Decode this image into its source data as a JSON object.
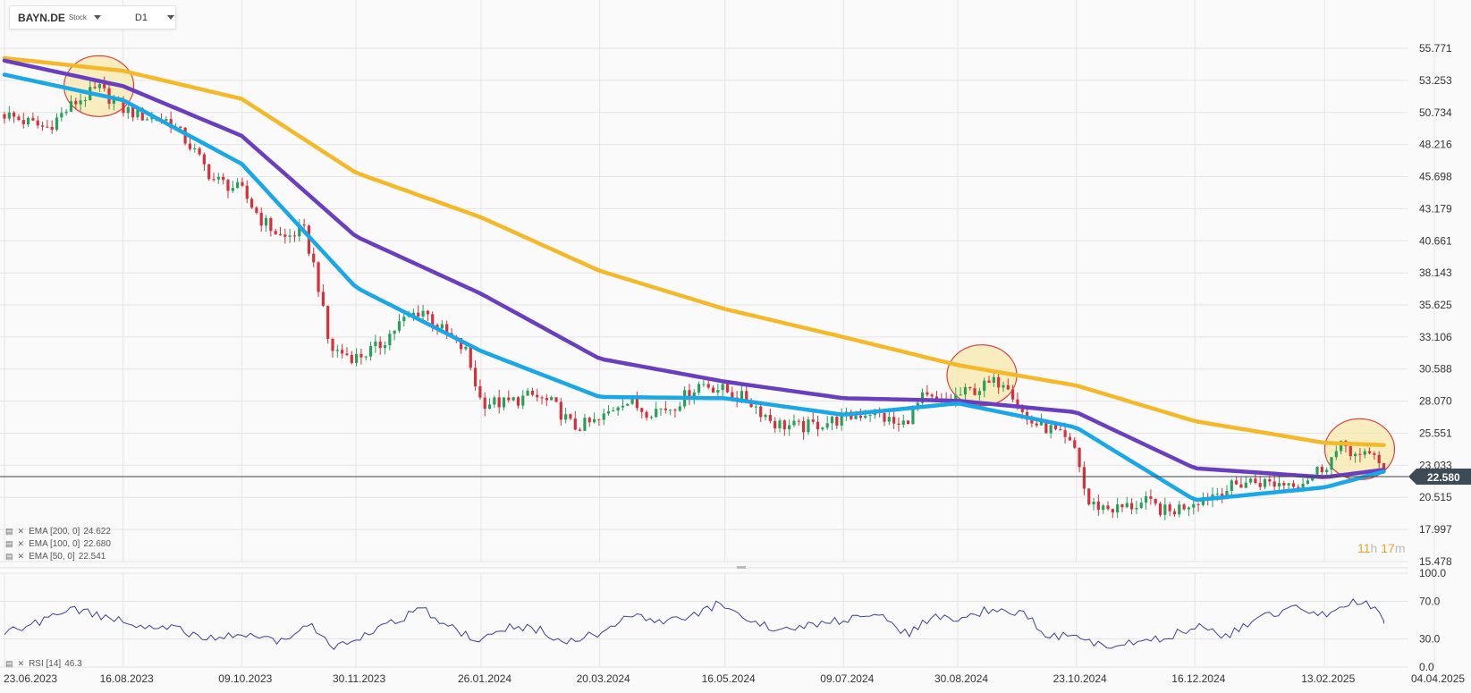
{
  "header": {
    "symbol": "BAYN.DE",
    "instrument_type": "Stock",
    "timeframe": "D1"
  },
  "price_axis": [
    "55.771",
    "53.253",
    "50.734",
    "48.216",
    "45.698",
    "43.179",
    "40.661",
    "38.143",
    "35.625",
    "33.106",
    "30.588",
    "28.070",
    "25.551",
    "23.033",
    "20.515",
    "17.997",
    "15.478"
  ],
  "current_price": "22.580",
  "rsi_axis": [
    "100.0",
    "70.0",
    "30.0",
    "0.0"
  ],
  "x_axis_dates": [
    "23.06.2023",
    "16.08.2023",
    "09.10.2023",
    "30.11.2023",
    "26.01.2024",
    "20.03.2024",
    "16.05.2024",
    "09.07.2024",
    "30.08.2024",
    "23.10.2024",
    "16.12.2024",
    "13.02.2025",
    "04.04.2025"
  ],
  "legend": [
    {
      "label": "EMA [200, 0]",
      "value": "24.622",
      "color": "#f5b829"
    },
    {
      "label": "EMA [100, 0]",
      "value": "22.680",
      "color": "#6a3fbf"
    },
    {
      "label": "EMA [50, 0]",
      "value": "22.541",
      "color": "#1aa7e8"
    }
  ],
  "rsi_legend": {
    "label": "RSI [14]",
    "value": "46.3"
  },
  "countdown": {
    "hours": "11",
    "h_unit": "h",
    "minutes": "17",
    "m_unit": "m"
  },
  "colors": {
    "up": "#27a05a",
    "down": "#d6303a",
    "ema200": "#f5b829",
    "ema100": "#6a3fbf",
    "ema50": "#1aa7e8",
    "rsi": "#3c3f99",
    "highlight_fill": "#f6eab4",
    "highlight_stroke": "#e03a3a"
  },
  "chart_data": {
    "type": "line",
    "price_ylim": [
      15.478,
      57.5
    ],
    "rsi_ylim": [
      0,
      100
    ],
    "grid": true,
    "close_series": [
      [
        "23.06.2023",
        50.6
      ],
      [
        "01.07.2023",
        50.1
      ],
      [
        "12.07.2023",
        49.5
      ],
      [
        "25.07.2023",
        51.5
      ],
      [
        "05.08.2023",
        52.6
      ],
      [
        "16.08.2023",
        51.0
      ],
      [
        "26.08.2023",
        50.4
      ],
      [
        "06.09.2023",
        50.1
      ],
      [
        "16.09.2023",
        48.0
      ],
      [
        "26.09.2023",
        45.5
      ],
      [
        "09.10.2023",
        44.6
      ],
      [
        "18.10.2023",
        42.3
      ],
      [
        "28.10.2023",
        40.8
      ],
      [
        "06.11.2023",
        41.6
      ],
      [
        "12.11.2023",
        38.0
      ],
      [
        "18.11.2023",
        32.2
      ],
      [
        "30.11.2023",
        31.5
      ],
      [
        "10.12.2023",
        32.3
      ],
      [
        "20.12.2023",
        34.2
      ],
      [
        "30.12.2023",
        35.3
      ],
      [
        "09.01.2024",
        33.5
      ],
      [
        "19.01.2024",
        32.0
      ],
      [
        "26.01.2024",
        28.0
      ],
      [
        "06.02.2024",
        27.9
      ],
      [
        "18.02.2024",
        28.5
      ],
      [
        "28.02.2024",
        27.8
      ],
      [
        "08.03.2024",
        26.0
      ],
      [
        "20.03.2024",
        26.5
      ],
      [
        "30.03.2024",
        28.2
      ],
      [
        "10.04.2024",
        27.3
      ],
      [
        "22.04.2024",
        27.6
      ],
      [
        "05.05.2024",
        29.5
      ],
      [
        "16.05.2024",
        28.9
      ],
      [
        "27.05.2024",
        28.1
      ],
      [
        "08.06.2024",
        26.3
      ],
      [
        "20.06.2024",
        26.0
      ],
      [
        "09.07.2024",
        26.7
      ],
      [
        "22.07.2024",
        27.3
      ],
      [
        "04.08.2024",
        26.0
      ],
      [
        "14.08.2024",
        28.3
      ],
      [
        "23.08.2024",
        27.9
      ],
      [
        "30.08.2024",
        28.5
      ],
      [
        "12.09.2024",
        29.3
      ],
      [
        "21.09.2024",
        29.8
      ],
      [
        "30.09.2024",
        26.6
      ],
      [
        "12.10.2024",
        25.8
      ],
      [
        "23.10.2024",
        24.2
      ],
      [
        "28.10.2024",
        20.0
      ],
      [
        "10.11.2024",
        19.6
      ],
      [
        "24.11.2024",
        20.1
      ],
      [
        "04.12.2024",
        19.3
      ],
      [
        "16.12.2024",
        20.3
      ],
      [
        "28.12.2024",
        21.0
      ],
      [
        "09.01.2025",
        21.8
      ],
      [
        "22.01.2025",
        21.6
      ],
      [
        "03.02.2025",
        21.8
      ],
      [
        "13.02.2025",
        23.0
      ],
      [
        "22.02.2025",
        24.7
      ],
      [
        "01.03.2025",
        23.5
      ],
      [
        "08.03.2025",
        24.1
      ],
      [
        "12.03.2025",
        22.58
      ]
    ],
    "series": [
      {
        "name": "EMA [200, 0]",
        "points": [
          [
            "23.06.2023",
            55.0
          ],
          [
            "16.08.2023",
            54.0
          ],
          [
            "09.10.2023",
            51.8
          ],
          [
            "30.11.2023",
            46.0
          ],
          [
            "26.01.2024",
            42.5
          ],
          [
            "20.03.2024",
            38.3
          ],
          [
            "16.05.2024",
            35.3
          ],
          [
            "09.07.2024",
            33.1
          ],
          [
            "30.08.2024",
            30.9
          ],
          [
            "23.10.2024",
            29.3
          ],
          [
            "16.12.2024",
            26.5
          ],
          [
            "13.02.2025",
            24.8
          ],
          [
            "12.03.2025",
            24.622
          ]
        ]
      },
      {
        "name": "EMA [100, 0]",
        "points": [
          [
            "23.06.2023",
            54.8
          ],
          [
            "16.08.2023",
            52.8
          ],
          [
            "09.10.2023",
            48.9
          ],
          [
            "30.11.2023",
            41.0
          ],
          [
            "26.01.2024",
            36.5
          ],
          [
            "20.03.2024",
            31.4
          ],
          [
            "16.05.2024",
            29.6
          ],
          [
            "09.07.2024",
            28.3
          ],
          [
            "30.08.2024",
            28.1
          ],
          [
            "23.10.2024",
            27.2
          ],
          [
            "16.12.2024",
            22.8
          ],
          [
            "13.02.2025",
            22.1
          ],
          [
            "12.03.2025",
            22.68
          ]
        ]
      },
      {
        "name": "EMA [50, 0]",
        "points": [
          [
            "23.06.2023",
            53.7
          ],
          [
            "16.08.2023",
            51.7
          ],
          [
            "09.10.2023",
            46.7
          ],
          [
            "30.11.2023",
            37.0
          ],
          [
            "26.01.2024",
            32.0
          ],
          [
            "20.03.2024",
            28.4
          ],
          [
            "16.05.2024",
            28.3
          ],
          [
            "09.07.2024",
            27.0
          ],
          [
            "30.08.2024",
            27.9
          ],
          [
            "23.10.2024",
            26.0
          ],
          [
            "16.12.2024",
            20.3
          ],
          [
            "13.02.2025",
            21.3
          ],
          [
            "12.03.2025",
            22.541
          ]
        ]
      }
    ],
    "rsi_series": [
      [
        "23.06.2023",
        38
      ],
      [
        "09.07.2023",
        47
      ],
      [
        "23.07.2023",
        61
      ],
      [
        "08.08.2023",
        54
      ],
      [
        "23.08.2023",
        46
      ],
      [
        "07.09.2023",
        42
      ],
      [
        "22.09.2023",
        30
      ],
      [
        "09.10.2023",
        35
      ],
      [
        "25.10.2023",
        28
      ],
      [
        "09.11.2023",
        45
      ],
      [
        "20.11.2023",
        19
      ],
      [
        "30.11.2023",
        31
      ],
      [
        "15.12.2023",
        45
      ],
      [
        "30.12.2023",
        62
      ],
      [
        "12.01.2024",
        42
      ],
      [
        "26.01.2024",
        28
      ],
      [
        "08.02.2024",
        43
      ],
      [
        "22.02.2024",
        40
      ],
      [
        "05.03.2024",
        25
      ],
      [
        "20.03.2024",
        37
      ],
      [
        "03.04.2024",
        58
      ],
      [
        "17.04.2024",
        48
      ],
      [
        "30.04.2024",
        52
      ],
      [
        "12.05.2024",
        66
      ],
      [
        "27.05.2024",
        47
      ],
      [
        "12.06.2024",
        40
      ],
      [
        "26.06.2024",
        46
      ],
      [
        "09.07.2024",
        50
      ],
      [
        "24.07.2024",
        57
      ],
      [
        "07.08.2024",
        35
      ],
      [
        "20.08.2024",
        56
      ],
      [
        "30.08.2024",
        50
      ],
      [
        "15.09.2024",
        63
      ],
      [
        "30.09.2024",
        55
      ],
      [
        "10.10.2024",
        32
      ],
      [
        "23.10.2024",
        33
      ],
      [
        "05.11.2024",
        20
      ],
      [
        "20.11.2024",
        26
      ],
      [
        "03.12.2024",
        31
      ],
      [
        "16.12.2024",
        44
      ],
      [
        "30.12.2024",
        32
      ],
      [
        "15.01.2025",
        55
      ],
      [
        "01.02.2025",
        62
      ],
      [
        "13.02.2025",
        55
      ],
      [
        "01.03.2025",
        72
      ],
      [
        "08.03.2025",
        63
      ],
      [
        "12.03.2025",
        46.3
      ]
    ],
    "highlights": [
      {
        "date": "05.08.2023",
        "price": 52.8
      },
      {
        "date": "10.09.2024",
        "price": 30.1
      },
      {
        "date": "01.03.2025",
        "price": 24.3
      }
    ]
  }
}
